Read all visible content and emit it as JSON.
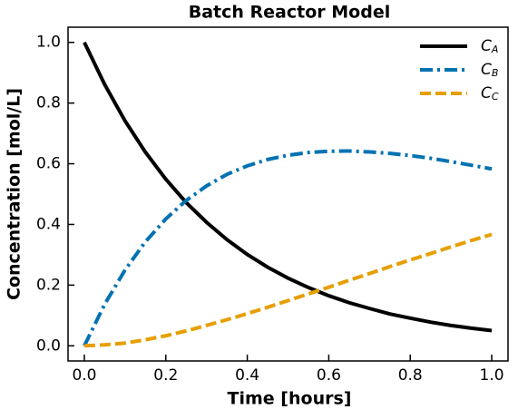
{
  "chart_data": {
    "type": "line",
    "title": "Batch Reactor Model",
    "x_label": "Time [hours]",
    "y_label": "Concentration [mol/L]",
    "x": [
      0,
      0.05,
      0.1,
      0.15,
      0.2,
      0.25,
      0.3,
      0.35,
      0.4,
      0.45,
      0.5,
      0.55,
      0.6,
      0.65,
      0.7,
      0.75,
      0.8,
      0.85,
      0.9,
      0.95,
      1.0
    ],
    "series": [
      {
        "name": "CA",
        "color": "#000000",
        "linestyle": "solid",
        "values": [
          1,
          0.861,
          0.741,
          0.638,
          0.549,
          0.472,
          0.407,
          0.35,
          0.301,
          0.259,
          0.223,
          0.192,
          0.165,
          0.142,
          0.123,
          0.105,
          0.091,
          0.078,
          0.067,
          0.058,
          0.05
        ]
      },
      {
        "name": "CB",
        "color": "#0072b2",
        "linestyle": "dashdot",
        "values": [
          0,
          0.137,
          0.25,
          0.343,
          0.418,
          0.479,
          0.527,
          0.565,
          0.593,
          0.614,
          0.628,
          0.637,
          0.641,
          0.642,
          0.639,
          0.634,
          0.627,
          0.618,
          0.607,
          0.595,
          0.583
        ]
      },
      {
        "name": "CC",
        "color": "#e69f00",
        "linestyle": "dashed",
        "values": [
          0,
          0.003,
          0.009,
          0.02,
          0.033,
          0.049,
          0.067,
          0.086,
          0.106,
          0.127,
          0.149,
          0.171,
          0.193,
          0.216,
          0.238,
          0.261,
          0.283,
          0.304,
          0.326,
          0.347,
          0.367
        ]
      }
    ],
    "xlim": [
      -0.04,
      1.04
    ],
    "ylim": [
      -0.05,
      1.05
    ],
    "xticks": [
      {
        "value": 0,
        "label": "0.0"
      },
      0.2,
      0.4,
      0.6,
      0.8,
      {
        "value": 1,
        "label": "1.0"
      }
    ],
    "yticks": [
      {
        "value": 0,
        "label": "0.0"
      },
      0.2,
      0.4,
      0.6,
      0.8,
      {
        "value": 1,
        "label": "1.0"
      }
    ],
    "legend": "upper right"
  }
}
